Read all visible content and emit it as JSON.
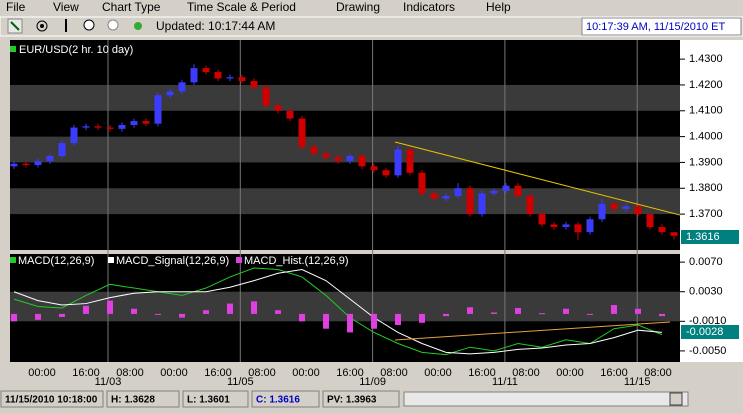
{
  "menu": [
    "File",
    "View",
    "Chart Type",
    "Time Scale & Period",
    "Drawing",
    "Indicators",
    "Help"
  ],
  "toolbar": {
    "updated": "Updated: 10:17:44 AM",
    "clock": "10:17:39 AM, 11/15/2010 ET"
  },
  "price_chart": {
    "legend": "EUR/USD(2 hr.  10 day)",
    "ylim": [
      1.3561,
      1.4374
    ],
    "yticks": [
      {
        "value": 1.43,
        "label": "1.4300"
      },
      {
        "value": 1.42,
        "label": "1.4200"
      },
      {
        "value": 1.41,
        "label": "1.4100"
      },
      {
        "value": 1.4,
        "label": "1.4000"
      },
      {
        "value": 1.39,
        "label": "1.3900"
      },
      {
        "value": 1.38,
        "label": "1.3800"
      },
      {
        "value": 1.37,
        "label": "1.3700"
      }
    ],
    "last_label": "1.3616",
    "up_color": "#3c3cff",
    "down_color": "#d00000",
    "open": [
      1.3885,
      1.3895,
      1.389,
      1.3905,
      1.3925,
      1.3975,
      1.4035,
      1.404,
      1.4035,
      1.403,
      1.4045,
      1.406,
      1.405,
      1.416,
      1.4175,
      1.421,
      1.4265,
      1.425,
      1.4225,
      1.423,
      1.4215,
      1.419,
      1.412,
      1.41,
      1.407,
      1.396,
      1.3935,
      1.392,
      1.3905,
      1.3925,
      1.3885,
      1.387,
      1.385,
      1.395,
      1.386,
      1.378,
      1.376,
      1.377,
      1.38,
      1.37,
      1.378,
      1.379,
      1.381,
      1.377,
      1.37,
      1.366,
      1.365,
      1.366,
      1.363,
      1.368,
      1.374,
      1.372,
      1.373,
      1.37,
      1.365,
      1.363
    ],
    "high": [
      1.3905,
      1.3905,
      1.3915,
      1.3935,
      1.3985,
      1.4045,
      1.405,
      1.405,
      1.4045,
      1.4055,
      1.407,
      1.407,
      1.417,
      1.4185,
      1.422,
      1.428,
      1.4275,
      1.426,
      1.424,
      1.424,
      1.4225,
      1.42,
      1.413,
      1.411,
      1.408,
      1.397,
      1.3945,
      1.393,
      1.3935,
      1.3935,
      1.3895,
      1.388,
      1.3965,
      1.396,
      1.387,
      1.379,
      1.378,
      1.382,
      1.381,
      1.379,
      1.38,
      1.382,
      1.382,
      1.378,
      1.371,
      1.367,
      1.367,
      1.367,
      1.369,
      1.376,
      1.375,
      1.374,
      1.374,
      1.371,
      1.366,
      1.3628
    ],
    "low": [
      1.3875,
      1.388,
      1.388,
      1.3895,
      1.3915,
      1.3965,
      1.4025,
      1.4025,
      1.402,
      1.402,
      1.4035,
      1.404,
      1.404,
      1.415,
      1.4165,
      1.42,
      1.424,
      1.4215,
      1.4215,
      1.4205,
      1.418,
      1.411,
      1.409,
      1.406,
      1.395,
      1.3925,
      1.391,
      1.3895,
      1.3895,
      1.3875,
      1.386,
      1.384,
      1.384,
      1.385,
      1.377,
      1.375,
      1.375,
      1.376,
      1.369,
      1.369,
      1.377,
      1.378,
      1.376,
      1.369,
      1.365,
      1.364,
      1.364,
      1.36,
      1.362,
      1.367,
      1.371,
      1.371,
      1.369,
      1.364,
      1.362,
      1.3601
    ],
    "close": [
      1.3895,
      1.389,
      1.3905,
      1.3925,
      1.3975,
      1.4035,
      1.404,
      1.4035,
      1.403,
      1.4045,
      1.406,
      1.405,
      1.416,
      1.4175,
      1.421,
      1.4265,
      1.425,
      1.4225,
      1.423,
      1.4215,
      1.419,
      1.412,
      1.41,
      1.407,
      1.396,
      1.3935,
      1.392,
      1.3905,
      1.3925,
      1.3885,
      1.387,
      1.385,
      1.395,
      1.386,
      1.378,
      1.376,
      1.377,
      1.38,
      1.37,
      1.378,
      1.379,
      1.381,
      1.377,
      1.37,
      1.366,
      1.365,
      1.366,
      1.363,
      1.368,
      1.374,
      1.372,
      1.373,
      1.37,
      1.365,
      1.363,
      1.3616
    ]
  },
  "macd_chart": {
    "ylim": [
      -0.0065,
      0.0081
    ],
    "yticks": [
      {
        "value": 0.007,
        "label": "0.0070"
      },
      {
        "value": 0.003,
        "label": "0.0030"
      },
      {
        "value": -0.001,
        "label": "-0.0010"
      },
      {
        "value": -0.005,
        "label": "-0.0050"
      }
    ],
    "last_label": "-0.0028",
    "series": [
      {
        "name": "MACD(12,26,9)",
        "color": "#22cc22",
        "values": [
          0.002,
          0.001,
          0.0008,
          0.0025,
          0.004,
          0.0035,
          0.003,
          0.0025,
          0.0035,
          0.005,
          0.0062,
          0.006,
          0.005,
          0.0025,
          -0.0005,
          -0.0025,
          -0.004,
          -0.0052,
          -0.0055,
          -0.0045,
          -0.005,
          -0.004,
          -0.0045,
          -0.0035,
          -0.004,
          -0.002,
          -0.0015,
          -0.0028
        ]
      },
      {
        "name": "MACD_Signal(12,26,9)",
        "color": "#ffffff",
        "values": [
          0.003,
          0.0018,
          0.0012,
          0.0014,
          0.0022,
          0.0028,
          0.003,
          0.003,
          0.003,
          0.0036,
          0.0045,
          0.0055,
          0.006,
          0.0045,
          0.002,
          -0.0005,
          -0.0025,
          -0.004,
          -0.0052,
          -0.0054,
          -0.0052,
          -0.0048,
          -0.0046,
          -0.0042,
          -0.004,
          -0.0032,
          -0.0022,
          -0.0025
        ]
      },
      {
        "name": "MACD_Hist.(12,26,9)",
        "color": "#e040e0",
        "values": [
          -0.001,
          -0.0008,
          -0.0004,
          0.0011,
          0.0018,
          0.0007,
          0,
          -0.0005,
          0.0005,
          0.0014,
          0.0017,
          0.0005,
          -0.001,
          -0.002,
          -0.0025,
          -0.002,
          -0.0015,
          -0.0012,
          -0.0003,
          0.0009,
          0.0002,
          0.0008,
          0.0001,
          0.0007,
          0,
          0.0012,
          0.0007,
          -0.0003
        ]
      }
    ]
  },
  "x_axis": {
    "times": [
      "00:00",
      "16:00",
      "08:00",
      "00:00",
      "16:00",
      "08:00",
      "00:00",
      "16:00",
      "08:00",
      "00:00",
      "16:00",
      "08:00",
      "00:00",
      "16:00",
      "08:00"
    ],
    "dates": [
      "11/03",
      "11/05",
      "11/09",
      "11/11",
      "11/15"
    ]
  },
  "status": [
    "11/15/2010 10:18:00",
    "H: 1.3628",
    "L: 1.3601",
    "C: 1.3616",
    "PV: 1.3963"
  ]
}
